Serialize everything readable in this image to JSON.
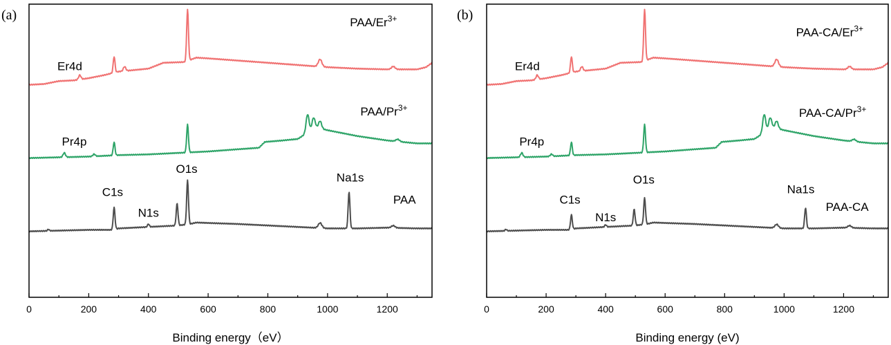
{
  "chart_data": [
    {
      "type": "line",
      "panel_label": "(a)",
      "xlabel": "Binding energy（eV）",
      "ylabel": "",
      "xlim": [
        0,
        1350
      ],
      "xticks": [
        0,
        200,
        400,
        600,
        800,
        1000,
        1200
      ],
      "y_ticks_shown": false,
      "grid": false,
      "series": [
        {
          "name": "PAA/Er",
          "name_sup": "3+",
          "color": "#f07272",
          "offset": 2.0,
          "baseline": [
            [
              0,
              0.0
            ],
            [
              50,
              0.01
            ],
            [
              100,
              0.05
            ],
            [
              150,
              0.06
            ],
            [
              200,
              0.09
            ],
            [
              250,
              0.13
            ],
            [
              300,
              0.18
            ],
            [
              400,
              0.22
            ],
            [
              450,
              0.3
            ],
            [
              520,
              0.31
            ],
            [
              560,
              0.37
            ],
            [
              600,
              0.36
            ],
            [
              700,
              0.33
            ],
            [
              800,
              0.3
            ],
            [
              900,
              0.27
            ],
            [
              1000,
              0.24
            ],
            [
              1100,
              0.22
            ],
            [
              1200,
              0.21
            ],
            [
              1300,
              0.21
            ],
            [
              1330,
              0.24
            ],
            [
              1350,
              0.3
            ]
          ],
          "peaks": [
            [
              170,
              0.06,
              4
            ],
            [
              285,
              0.22,
              3
            ],
            [
              320,
              0.06,
              4
            ],
            [
              531,
              0.7,
              3
            ],
            [
              975,
              0.1,
              6
            ],
            [
              1220,
              0.04,
              6
            ]
          ]
        },
        {
          "name": "PAA/Pr",
          "name_sup": "3+",
          "color": "#2ea468",
          "offset": 1.0,
          "baseline": [
            [
              0,
              0.0
            ],
            [
              100,
              0.01
            ],
            [
              200,
              0.02
            ],
            [
              300,
              0.04
            ],
            [
              400,
              0.05
            ],
            [
              500,
              0.07
            ],
            [
              600,
              0.09
            ],
            [
              700,
              0.12
            ],
            [
              770,
              0.14
            ],
            [
              790,
              0.22
            ],
            [
              850,
              0.24
            ],
            [
              900,
              0.26
            ],
            [
              935,
              0.35
            ],
            [
              960,
              0.42
            ],
            [
              1000,
              0.38
            ],
            [
              1100,
              0.3
            ],
            [
              1200,
              0.24
            ],
            [
              1300,
              0.2
            ],
            [
              1350,
              0.2
            ]
          ],
          "peaks": [
            [
              118,
              0.06,
              4
            ],
            [
              218,
              0.03,
              4
            ],
            [
              285,
              0.18,
              3
            ],
            [
              531,
              0.38,
              3
            ],
            [
              933,
              0.25,
              5
            ],
            [
              953,
              0.15,
              5
            ],
            [
              975,
              0.1,
              5
            ],
            [
              1235,
              0.03,
              6
            ]
          ]
        },
        {
          "name": "PAA",
          "name_sup": "",
          "color": "#4d4d4d",
          "offset": 0.0,
          "baseline": [
            [
              0,
              0.0
            ],
            [
              100,
              0.01
            ],
            [
              200,
              0.02
            ],
            [
              280,
              0.02
            ],
            [
              300,
              0.04
            ],
            [
              400,
              0.06
            ],
            [
              500,
              0.08
            ],
            [
              540,
              0.1
            ],
            [
              560,
              0.12
            ],
            [
              700,
              0.1
            ],
            [
              800,
              0.08
            ],
            [
              900,
              0.06
            ],
            [
              1000,
              0.04
            ],
            [
              1100,
              0.04
            ],
            [
              1200,
              0.05
            ],
            [
              1300,
              0.04
            ],
            [
              1350,
              0.04
            ]
          ],
          "peaks": [
            [
              65,
              0.02,
              3
            ],
            [
              285,
              0.3,
              3
            ],
            [
              400,
              0.04,
              3
            ],
            [
              496,
              0.3,
              3
            ],
            [
              531,
              0.6,
              3
            ],
            [
              975,
              0.07,
              6
            ],
            [
              1072,
              0.5,
              3
            ],
            [
              1220,
              0.03,
              6
            ]
          ]
        }
      ],
      "annotations": [
        {
          "text": "Er4d",
          "x": 95,
          "y": 2.2
        },
        {
          "text": "Pr4p",
          "x": 110,
          "y": 1.17
        },
        {
          "text": "C1s",
          "x": 245,
          "y": 0.48
        },
        {
          "text": "N1s",
          "x": 365,
          "y": 0.2
        },
        {
          "text": "O1s",
          "x": 492,
          "y": 0.8
        },
        {
          "text": "Na1s",
          "x": 1030,
          "y": 0.68
        },
        {
          "text": "PAA/Er",
          "sup": "3+",
          "x": 1075,
          "y": 2.8
        },
        {
          "text": "PAA/Pr",
          "sup": "3+",
          "x": 1110,
          "y": 1.58
        },
        {
          "text": "PAA",
          "x": 1220,
          "y": 0.38
        }
      ]
    },
    {
      "type": "line",
      "panel_label": "(b)",
      "xlabel": "Binding energy (eV)",
      "ylabel": "",
      "xlim": [
        0,
        1350
      ],
      "xticks": [
        0,
        200,
        400,
        600,
        800,
        1000,
        1200
      ],
      "y_ticks_shown": false,
      "grid": false,
      "series": [
        {
          "name": "PAA-CA/Er",
          "name_sup": "3+",
          "color": "#f07272",
          "offset": 2.0,
          "baseline": [
            [
              0,
              0.0
            ],
            [
              50,
              0.01
            ],
            [
              100,
              0.05
            ],
            [
              150,
              0.06
            ],
            [
              200,
              0.09
            ],
            [
              250,
              0.13
            ],
            [
              300,
              0.18
            ],
            [
              400,
              0.22
            ],
            [
              450,
              0.3
            ],
            [
              520,
              0.31
            ],
            [
              560,
              0.37
            ],
            [
              600,
              0.36
            ],
            [
              700,
              0.33
            ],
            [
              800,
              0.3
            ],
            [
              900,
              0.27
            ],
            [
              1000,
              0.24
            ],
            [
              1100,
              0.22
            ],
            [
              1200,
              0.21
            ],
            [
              1300,
              0.21
            ],
            [
              1330,
              0.24
            ],
            [
              1350,
              0.3
            ]
          ],
          "peaks": [
            [
              170,
              0.06,
              4
            ],
            [
              285,
              0.22,
              3
            ],
            [
              320,
              0.06,
              4
            ],
            [
              531,
              0.7,
              3
            ],
            [
              975,
              0.1,
              6
            ],
            [
              1220,
              0.04,
              6
            ]
          ]
        },
        {
          "name": "PAA-CA/Pr",
          "name_sup": "3+",
          "color": "#2ea468",
          "offset": 1.0,
          "baseline": [
            [
              0,
              0.0
            ],
            [
              100,
              0.01
            ],
            [
              200,
              0.02
            ],
            [
              300,
              0.04
            ],
            [
              400,
              0.05
            ],
            [
              500,
              0.07
            ],
            [
              600,
              0.09
            ],
            [
              700,
              0.12
            ],
            [
              770,
              0.14
            ],
            [
              790,
              0.22
            ],
            [
              850,
              0.24
            ],
            [
              900,
              0.26
            ],
            [
              935,
              0.35
            ],
            [
              960,
              0.42
            ],
            [
              1000,
              0.38
            ],
            [
              1100,
              0.3
            ],
            [
              1200,
              0.24
            ],
            [
              1300,
              0.2
            ],
            [
              1350,
              0.2
            ]
          ],
          "peaks": [
            [
              118,
              0.06,
              4
            ],
            [
              218,
              0.03,
              4
            ],
            [
              285,
              0.18,
              3
            ],
            [
              531,
              0.38,
              3
            ],
            [
              933,
              0.25,
              5
            ],
            [
              953,
              0.15,
              5
            ],
            [
              975,
              0.1,
              5
            ],
            [
              1235,
              0.03,
              6
            ]
          ]
        },
        {
          "name": "PAA-CA",
          "name_sup": "",
          "color": "#4d4d4d",
          "offset": 0.0,
          "baseline": [
            [
              0,
              0.0
            ],
            [
              100,
              0.01
            ],
            [
              200,
              0.02
            ],
            [
              280,
              0.02
            ],
            [
              300,
              0.04
            ],
            [
              400,
              0.06
            ],
            [
              500,
              0.08
            ],
            [
              540,
              0.1
            ],
            [
              560,
              0.12
            ],
            [
              700,
              0.1
            ],
            [
              800,
              0.08
            ],
            [
              900,
              0.06
            ],
            [
              1000,
              0.04
            ],
            [
              1100,
              0.04
            ],
            [
              1200,
              0.05
            ],
            [
              1300,
              0.04
            ],
            [
              1350,
              0.04
            ]
          ],
          "peaks": [
            [
              65,
              0.02,
              3
            ],
            [
              285,
              0.2,
              3
            ],
            [
              400,
              0.03,
              3
            ],
            [
              496,
              0.22,
              3
            ],
            [
              531,
              0.36,
              3
            ],
            [
              975,
              0.05,
              6
            ],
            [
              1072,
              0.28,
              3
            ],
            [
              1220,
              0.03,
              6
            ]
          ]
        }
      ],
      "annotations": [
        {
          "text": "Er4d",
          "x": 95,
          "y": 2.2
        },
        {
          "text": "Pr4p",
          "x": 110,
          "y": 1.17
        },
        {
          "text": "C1s",
          "x": 245,
          "y": 0.38
        },
        {
          "text": "N1s",
          "x": 365,
          "y": 0.14
        },
        {
          "text": "O1s",
          "x": 492,
          "y": 0.65
        },
        {
          "text": "Na1s",
          "x": 1010,
          "y": 0.52
        },
        {
          "text": "PAA-CA/Er",
          "sup": "3+",
          "x": 1040,
          "y": 2.66
        },
        {
          "text": "PAA-CA/Pr",
          "sup": "3+",
          "x": 1050,
          "y": 1.56
        },
        {
          "text": "PAA-CA",
          "x": 1140,
          "y": 0.28
        }
      ]
    }
  ]
}
